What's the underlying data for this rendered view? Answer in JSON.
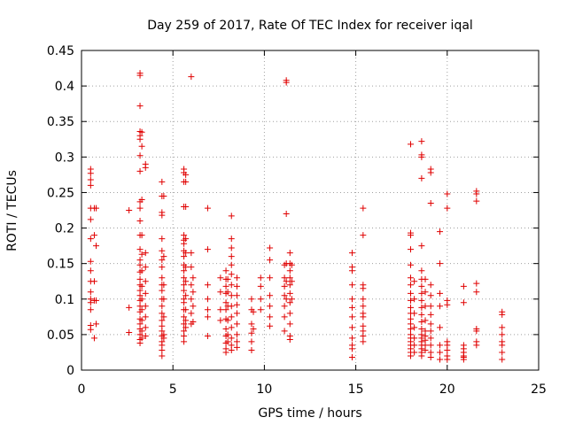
{
  "chart_data": {
    "type": "scatter",
    "title": "Day 259 of 2017, Rate Of TEC Index for receiver iqal",
    "xlabel": "GPS time / hours",
    "ylabel": "ROTI / TECUs",
    "xlim": [
      0,
      25
    ],
    "ylim": [
      0,
      0.45
    ],
    "xticks": [
      0,
      5,
      10,
      15,
      20,
      25
    ],
    "yticks": [
      0,
      0.05,
      0.1,
      0.15,
      0.2,
      0.25,
      0.3,
      0.35,
      0.4,
      0.45
    ],
    "ytick_labels": [
      "0",
      "0.05",
      "0.1",
      "0.15",
      "0.2",
      "0.25",
      "0.3",
      "0.35",
      "0.4",
      "0.45"
    ],
    "grid": true,
    "marker": "plus",
    "color": "#e00000",
    "points": [
      [
        0.5,
        0.283
      ],
      [
        0.5,
        0.277
      ],
      [
        0.5,
        0.268
      ],
      [
        0.5,
        0.26
      ],
      [
        0.5,
        0.228
      ],
      [
        0.5,
        0.212
      ],
      [
        0.5,
        0.185
      ],
      [
        0.5,
        0.153
      ],
      [
        0.5,
        0.14
      ],
      [
        0.5,
        0.125
      ],
      [
        0.5,
        0.11
      ],
      [
        0.5,
        0.1
      ],
      [
        0.5,
        0.095
      ],
      [
        0.5,
        0.085
      ],
      [
        0.5,
        0.063
      ],
      [
        0.5,
        0.057
      ],
      [
        0.7,
        0.228
      ],
      [
        0.7,
        0.19
      ],
      [
        0.7,
        0.125
      ],
      [
        0.7,
        0.098
      ],
      [
        0.7,
        0.045
      ],
      [
        0.8,
        0.228
      ],
      [
        0.8,
        0.175
      ],
      [
        0.8,
        0.098
      ],
      [
        0.8,
        0.065
      ],
      [
        2.6,
        0.225
      ],
      [
        2.6,
        0.088
      ],
      [
        2.6,
        0.053
      ],
      [
        3.2,
        0.418
      ],
      [
        3.2,
        0.415
      ],
      [
        3.2,
        0.372
      ],
      [
        3.2,
        0.336
      ],
      [
        3.2,
        0.33
      ],
      [
        3.2,
        0.325
      ],
      [
        3.2,
        0.302
      ],
      [
        3.2,
        0.28
      ],
      [
        3.2,
        0.237
      ],
      [
        3.2,
        0.228
      ],
      [
        3.2,
        0.21
      ],
      [
        3.2,
        0.19
      ],
      [
        3.2,
        0.17
      ],
      [
        3.2,
        0.155
      ],
      [
        3.2,
        0.148
      ],
      [
        3.2,
        0.138
      ],
      [
        3.2,
        0.128
      ],
      [
        3.2,
        0.12
      ],
      [
        3.2,
        0.112
      ],
      [
        3.2,
        0.105
      ],
      [
        3.2,
        0.098
      ],
      [
        3.2,
        0.09
      ],
      [
        3.2,
        0.082
      ],
      [
        3.2,
        0.072
      ],
      [
        3.2,
        0.065
      ],
      [
        3.2,
        0.058
      ],
      [
        3.2,
        0.05
      ],
      [
        3.2,
        0.043
      ],
      [
        3.2,
        0.038
      ],
      [
        3.3,
        0.335
      ],
      [
        3.3,
        0.315
      ],
      [
        3.3,
        0.24
      ],
      [
        3.3,
        0.19
      ],
      [
        3.3,
        0.163
      ],
      [
        3.3,
        0.14
      ],
      [
        3.3,
        0.118
      ],
      [
        3.3,
        0.1
      ],
      [
        3.3,
        0.085
      ],
      [
        3.3,
        0.07
      ],
      [
        3.3,
        0.055
      ],
      [
        3.3,
        0.045
      ],
      [
        3.5,
        0.29
      ],
      [
        3.5,
        0.285
      ],
      [
        3.5,
        0.165
      ],
      [
        3.5,
        0.145
      ],
      [
        3.5,
        0.125
      ],
      [
        3.5,
        0.108
      ],
      [
        3.5,
        0.09
      ],
      [
        3.5,
        0.075
      ],
      [
        3.5,
        0.06
      ],
      [
        3.5,
        0.048
      ],
      [
        4.4,
        0.265
      ],
      [
        4.4,
        0.245
      ],
      [
        4.4,
        0.222
      ],
      [
        4.4,
        0.218
      ],
      [
        4.4,
        0.185
      ],
      [
        4.4,
        0.168
      ],
      [
        4.4,
        0.155
      ],
      [
        4.4,
        0.145
      ],
      [
        4.4,
        0.13
      ],
      [
        4.4,
        0.12
      ],
      [
        4.4,
        0.112
      ],
      [
        4.4,
        0.1
      ],
      [
        4.4,
        0.09
      ],
      [
        4.4,
        0.08
      ],
      [
        4.4,
        0.07
      ],
      [
        4.4,
        0.062
      ],
      [
        4.4,
        0.055
      ],
      [
        4.4,
        0.048
      ],
      [
        4.4,
        0.04
      ],
      [
        4.4,
        0.035
      ],
      [
        4.4,
        0.028
      ],
      [
        4.4,
        0.02
      ],
      [
        4.5,
        0.245
      ],
      [
        4.5,
        0.16
      ],
      [
        4.5,
        0.12
      ],
      [
        4.5,
        0.1
      ],
      [
        4.5,
        0.075
      ],
      [
        4.5,
        0.05
      ],
      [
        4.5,
        0.045
      ],
      [
        5.6,
        0.283
      ],
      [
        5.6,
        0.278
      ],
      [
        5.6,
        0.265
      ],
      [
        5.6,
        0.23
      ],
      [
        5.6,
        0.19
      ],
      [
        5.6,
        0.183
      ],
      [
        5.6,
        0.178
      ],
      [
        5.6,
        0.168
      ],
      [
        5.6,
        0.16
      ],
      [
        5.6,
        0.148
      ],
      [
        5.6,
        0.14
      ],
      [
        5.6,
        0.13
      ],
      [
        5.6,
        0.12
      ],
      [
        5.6,
        0.112
      ],
      [
        5.6,
        0.1
      ],
      [
        5.6,
        0.095
      ],
      [
        5.6,
        0.085
      ],
      [
        5.6,
        0.075
      ],
      [
        5.6,
        0.065
      ],
      [
        5.6,
        0.055
      ],
      [
        5.6,
        0.048
      ],
      [
        5.6,
        0.04
      ],
      [
        5.7,
        0.275
      ],
      [
        5.7,
        0.265
      ],
      [
        5.7,
        0.23
      ],
      [
        5.7,
        0.185
      ],
      [
        5.7,
        0.165
      ],
      [
        5.7,
        0.145
      ],
      [
        5.7,
        0.125
      ],
      [
        5.7,
        0.105
      ],
      [
        5.7,
        0.085
      ],
      [
        5.7,
        0.07
      ],
      [
        5.7,
        0.06
      ],
      [
        6.0,
        0.413
      ],
      [
        6.0,
        0.165
      ],
      [
        6.0,
        0.145
      ],
      [
        6.0,
        0.12
      ],
      [
        6.0,
        0.1
      ],
      [
        6.0,
        0.08
      ],
      [
        6.0,
        0.065
      ],
      [
        6.1,
        0.13
      ],
      [
        6.1,
        0.11
      ],
      [
        6.1,
        0.09
      ],
      [
        6.1,
        0.068
      ],
      [
        6.9,
        0.228
      ],
      [
        6.9,
        0.17
      ],
      [
        6.9,
        0.12
      ],
      [
        6.9,
        0.1
      ],
      [
        6.9,
        0.085
      ],
      [
        6.9,
        0.075
      ],
      [
        6.9,
        0.048
      ],
      [
        7.6,
        0.13
      ],
      [
        7.6,
        0.11
      ],
      [
        7.6,
        0.085
      ],
      [
        7.6,
        0.07
      ],
      [
        7.9,
        0.14
      ],
      [
        7.9,
        0.128
      ],
      [
        7.9,
        0.118
      ],
      [
        7.9,
        0.108
      ],
      [
        7.9,
        0.095
      ],
      [
        7.9,
        0.085
      ],
      [
        7.9,
        0.072
      ],
      [
        7.9,
        0.058
      ],
      [
        7.9,
        0.048
      ],
      [
        7.9,
        0.038
      ],
      [
        7.9,
        0.03
      ],
      [
        7.9,
        0.025
      ],
      [
        8.0,
        0.128
      ],
      [
        8.0,
        0.11
      ],
      [
        8.0,
        0.09
      ],
      [
        8.0,
        0.07
      ],
      [
        8.0,
        0.05
      ],
      [
        8.0,
        0.04
      ],
      [
        8.2,
        0.217
      ],
      [
        8.2,
        0.185
      ],
      [
        8.2,
        0.172
      ],
      [
        8.2,
        0.16
      ],
      [
        8.2,
        0.148
      ],
      [
        8.2,
        0.135
      ],
      [
        8.2,
        0.12
      ],
      [
        8.2,
        0.105
      ],
      [
        8.2,
        0.09
      ],
      [
        8.2,
        0.075
      ],
      [
        8.2,
        0.06
      ],
      [
        8.2,
        0.045
      ],
      [
        8.2,
        0.035
      ],
      [
        8.2,
        0.028
      ],
      [
        8.5,
        0.13
      ],
      [
        8.5,
        0.118
      ],
      [
        8.5,
        0.105
      ],
      [
        8.5,
        0.092
      ],
      [
        8.5,
        0.08
      ],
      [
        8.5,
        0.065
      ],
      [
        8.5,
        0.05
      ],
      [
        8.5,
        0.04
      ],
      [
        8.5,
        0.032
      ],
      [
        9.3,
        0.1
      ],
      [
        9.3,
        0.085
      ],
      [
        9.3,
        0.065
      ],
      [
        9.3,
        0.052
      ],
      [
        9.3,
        0.04
      ],
      [
        9.3,
        0.028
      ],
      [
        9.4,
        0.082
      ],
      [
        9.4,
        0.058
      ],
      [
        9.8,
        0.13
      ],
      [
        9.8,
        0.118
      ],
      [
        9.8,
        0.1
      ],
      [
        9.8,
        0.085
      ],
      [
        10.3,
        0.172
      ],
      [
        10.3,
        0.155
      ],
      [
        10.3,
        0.13
      ],
      [
        10.3,
        0.105
      ],
      [
        10.3,
        0.09
      ],
      [
        10.3,
        0.075
      ],
      [
        10.3,
        0.062
      ],
      [
        11.1,
        0.148
      ],
      [
        11.1,
        0.13
      ],
      [
        11.1,
        0.118
      ],
      [
        11.1,
        0.105
      ],
      [
        11.1,
        0.09
      ],
      [
        11.1,
        0.075
      ],
      [
        11.1,
        0.055
      ],
      [
        11.2,
        0.408
      ],
      [
        11.2,
        0.405
      ],
      [
        11.2,
        0.22
      ],
      [
        11.2,
        0.15
      ],
      [
        11.2,
        0.125
      ],
      [
        11.2,
        0.1
      ],
      [
        11.4,
        0.165
      ],
      [
        11.4,
        0.15
      ],
      [
        11.4,
        0.14
      ],
      [
        11.4,
        0.13
      ],
      [
        11.4,
        0.12
      ],
      [
        11.4,
        0.108
      ],
      [
        11.4,
        0.095
      ],
      [
        11.4,
        0.08
      ],
      [
        11.4,
        0.065
      ],
      [
        11.4,
        0.048
      ],
      [
        11.4,
        0.043
      ],
      [
        11.5,
        0.148
      ],
      [
        11.5,
        0.125
      ],
      [
        11.5,
        0.1
      ],
      [
        14.8,
        0.165
      ],
      [
        14.8,
        0.145
      ],
      [
        14.8,
        0.14
      ],
      [
        14.8,
        0.12
      ],
      [
        14.8,
        0.1
      ],
      [
        14.8,
        0.088
      ],
      [
        14.8,
        0.075
      ],
      [
        14.8,
        0.06
      ],
      [
        14.8,
        0.045
      ],
      [
        14.8,
        0.035
      ],
      [
        14.8,
        0.03
      ],
      [
        14.8,
        0.018
      ],
      [
        15.4,
        0.228
      ],
      [
        15.4,
        0.19
      ],
      [
        15.4,
        0.12
      ],
      [
        15.4,
        0.115
      ],
      [
        15.4,
        0.1
      ],
      [
        15.4,
        0.09
      ],
      [
        15.4,
        0.08
      ],
      [
        15.4,
        0.075
      ],
      [
        15.4,
        0.062
      ],
      [
        15.4,
        0.055
      ],
      [
        15.4,
        0.048
      ],
      [
        15.4,
        0.04
      ],
      [
        18.0,
        0.318
      ],
      [
        18.0,
        0.193
      ],
      [
        18.0,
        0.19
      ],
      [
        18.0,
        0.17
      ],
      [
        18.0,
        0.148
      ],
      [
        18.0,
        0.13
      ],
      [
        18.0,
        0.12
      ],
      [
        18.0,
        0.108
      ],
      [
        18.0,
        0.098
      ],
      [
        18.0,
        0.088
      ],
      [
        18.0,
        0.08
      ],
      [
        18.0,
        0.072
      ],
      [
        18.0,
        0.065
      ],
      [
        18.0,
        0.058
      ],
      [
        18.0,
        0.05
      ],
      [
        18.0,
        0.045
      ],
      [
        18.0,
        0.04
      ],
      [
        18.0,
        0.035
      ],
      [
        18.0,
        0.03
      ],
      [
        18.0,
        0.025
      ],
      [
        18.0,
        0.02
      ],
      [
        18.2,
        0.125
      ],
      [
        18.2,
        0.1
      ],
      [
        18.2,
        0.08
      ],
      [
        18.2,
        0.06
      ],
      [
        18.2,
        0.045
      ],
      [
        18.2,
        0.035
      ],
      [
        18.2,
        0.025
      ],
      [
        18.6,
        0.322
      ],
      [
        18.6,
        0.303
      ],
      [
        18.6,
        0.3
      ],
      [
        18.6,
        0.27
      ],
      [
        18.6,
        0.175
      ],
      [
        18.6,
        0.14
      ],
      [
        18.6,
        0.128
      ],
      [
        18.6,
        0.118
      ],
      [
        18.6,
        0.108
      ],
      [
        18.6,
        0.098
      ],
      [
        18.6,
        0.088
      ],
      [
        18.6,
        0.078
      ],
      [
        18.6,
        0.068
      ],
      [
        18.6,
        0.058
      ],
      [
        18.6,
        0.05
      ],
      [
        18.6,
        0.045
      ],
      [
        18.6,
        0.04
      ],
      [
        18.6,
        0.035
      ],
      [
        18.6,
        0.03
      ],
      [
        18.6,
        0.025
      ],
      [
        18.6,
        0.02
      ],
      [
        18.8,
        0.128
      ],
      [
        18.8,
        0.11
      ],
      [
        18.8,
        0.09
      ],
      [
        18.8,
        0.07
      ],
      [
        18.8,
        0.055
      ],
      [
        18.8,
        0.048
      ],
      [
        18.8,
        0.042
      ],
      [
        18.8,
        0.035
      ],
      [
        18.8,
        0.028
      ],
      [
        19.1,
        0.283
      ],
      [
        19.1,
        0.278
      ],
      [
        19.1,
        0.235
      ],
      [
        19.1,
        0.12
      ],
      [
        19.1,
        0.105
      ],
      [
        19.1,
        0.09
      ],
      [
        19.1,
        0.078
      ],
      [
        19.1,
        0.065
      ],
      [
        19.1,
        0.055
      ],
      [
        19.1,
        0.045
      ],
      [
        19.1,
        0.035
      ],
      [
        19.1,
        0.025
      ],
      [
        19.1,
        0.018
      ],
      [
        19.6,
        0.195
      ],
      [
        19.6,
        0.15
      ],
      [
        19.6,
        0.108
      ],
      [
        19.6,
        0.09
      ],
      [
        19.6,
        0.06
      ],
      [
        19.6,
        0.035
      ],
      [
        19.6,
        0.025
      ],
      [
        19.6,
        0.015
      ],
      [
        20.0,
        0.248
      ],
      [
        20.0,
        0.228
      ],
      [
        20.0,
        0.098
      ],
      [
        20.0,
        0.092
      ],
      [
        20.0,
        0.04
      ],
      [
        20.0,
        0.035
      ],
      [
        20.0,
        0.028
      ],
      [
        20.0,
        0.02
      ],
      [
        20.0,
        0.015
      ],
      [
        20.9,
        0.118
      ],
      [
        20.9,
        0.095
      ],
      [
        20.9,
        0.035
      ],
      [
        20.9,
        0.03
      ],
      [
        20.9,
        0.025
      ],
      [
        20.9,
        0.02
      ],
      [
        20.9,
        0.018
      ],
      [
        20.9,
        0.015
      ],
      [
        21.6,
        0.252
      ],
      [
        21.6,
        0.248
      ],
      [
        21.6,
        0.238
      ],
      [
        21.6,
        0.122
      ],
      [
        21.6,
        0.11
      ],
      [
        21.6,
        0.058
      ],
      [
        21.6,
        0.055
      ],
      [
        21.6,
        0.04
      ],
      [
        21.6,
        0.035
      ],
      [
        23.0,
        0.082
      ],
      [
        23.0,
        0.078
      ],
      [
        23.0,
        0.06
      ],
      [
        23.0,
        0.05
      ],
      [
        23.0,
        0.04
      ],
      [
        23.0,
        0.035
      ],
      [
        23.0,
        0.025
      ],
      [
        23.0,
        0.015
      ]
    ]
  }
}
